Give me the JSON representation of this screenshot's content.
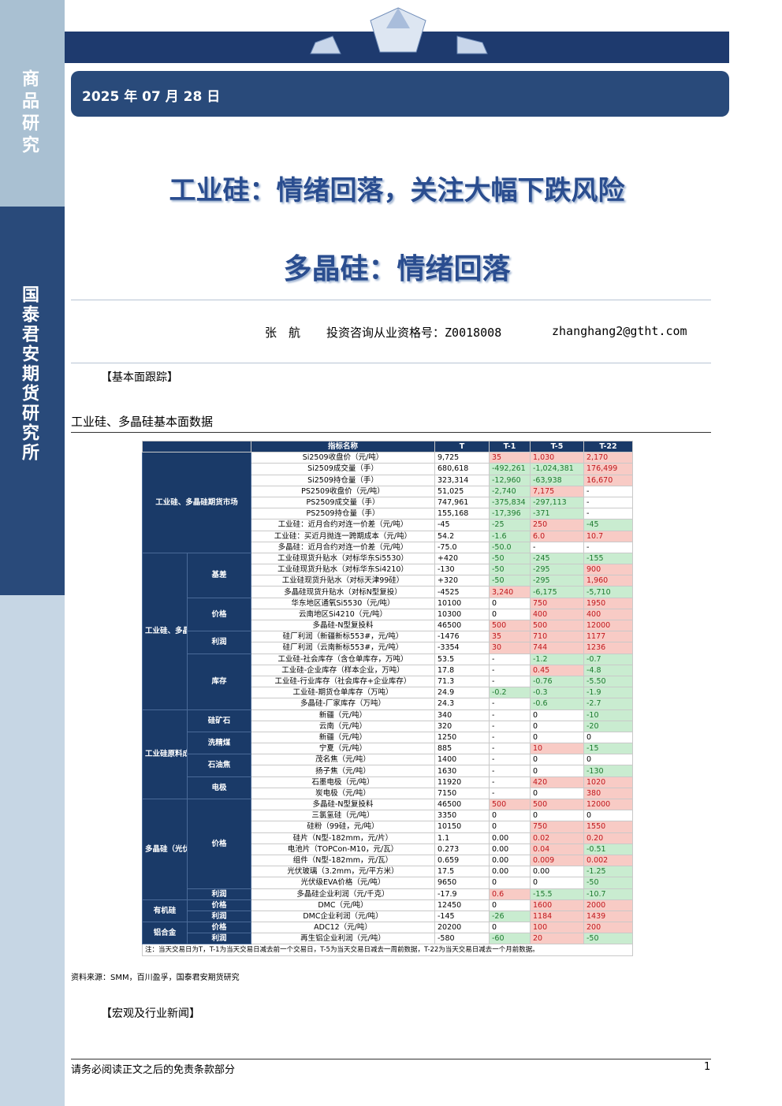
{
  "sidebar": {
    "section": "商品研究",
    "institute": "国泰君安期货研究所"
  },
  "header": {
    "date": "2025 年 07 月 28 日",
    "title": "工业硅：情绪回落，关注大幅下跌风险",
    "subtitle": "多晶硅：情绪回落"
  },
  "author": {
    "name": "张　航",
    "license": "投资咨询从业资格号：Z0018008",
    "email": "zhanghang2@gtht.com"
  },
  "fundamentals_heading": "【基本面跟踪】",
  "table_caption": "工业硅、多晶硅基本面数据",
  "table": {
    "header": [
      "指标名称",
      "T",
      "T-1",
      "T-5",
      "T-22"
    ],
    "groups": [
      {
        "label": "工业硅、多晶硅期货市场",
        "rows": [
          [
            "Si2509收盘价（元/吨）",
            "9,725",
            "35",
            "1,030",
            "2,170"
          ],
          [
            "Si2509成交量（手）",
            "680,618",
            "-492,261",
            "-1,024,381",
            "176,499"
          ],
          [
            "Si2509持仓量（手）",
            "323,314",
            "-12,960",
            "-63,938",
            "16,670"
          ],
          [
            "PS2509收盘价（元/吨）",
            "51,025",
            "-2,740",
            "7,175",
            "-"
          ],
          [
            "PS2509成交量（手）",
            "747,961",
            "-375,834",
            "-297,113",
            "-"
          ],
          [
            "PS2509持仓量（手）",
            "155,168",
            "-17,396",
            "-371",
            "-"
          ],
          [
            "工业硅：近月合约对连一价差（元/吨）",
            "-45",
            "-25",
            "250",
            "-45"
          ],
          [
            "工业硅：买近月抛连一跨期成本（元/吨）",
            "54.2",
            "-1.6",
            "6.0",
            "10.7"
          ],
          [
            "多晶硅：近月合约对连一价差（元/吨）",
            "-75.0",
            "-50.0",
            "-",
            "-"
          ]
        ]
      },
      {
        "label": "工业硅、多晶硅",
        "subgroups": [
          {
            "label": "基差",
            "rows": [
              [
                "工业硅现货升贴水（对标华东Si5530）",
                "+420",
                "-50",
                "-245",
                "-155"
              ],
              [
                "工业硅现货升贴水（对标华东Si4210）",
                "-130",
                "-50",
                "-295",
                "900"
              ],
              [
                "工业硅现货升贴水（对标天津99硅）",
                "+320",
                "-50",
                "-295",
                "1,960"
              ],
              [
                "多晶硅现货升贴水（对标N型复投）",
                "-4525",
                "3,240",
                "-6,175",
                "-5,710"
              ]
            ]
          },
          {
            "label": "价格",
            "rows": [
              [
                "华东地区通氧Si5530（元/吨）",
                "10100",
                "0",
                "750",
                "1950"
              ],
              [
                "云南地区Si4210（元/吨）",
                "10300",
                "0",
                "400",
                "400"
              ],
              [
                "多晶硅-N型复投料",
                "46500",
                "500",
                "500",
                "12000"
              ]
            ]
          },
          {
            "label": "利润",
            "rows": [
              [
                "硅厂利润（新疆新标553#，元/吨）",
                "-1476",
                "35",
                "710",
                "1177"
              ],
              [
                "硅厂利润（云南新标553#，元/吨）",
                "-3354",
                "30",
                "744",
                "1236"
              ]
            ]
          },
          {
            "label": "库存",
            "rows": [
              [
                "工业硅-社会库存（含仓单库存，万吨）",
                "53.5",
                "-",
                "-1.2",
                "-0.7"
              ],
              [
                "工业硅-企业库存（样本企业，万吨）",
                "17.8",
                "-",
                "0.45",
                "-4.8"
              ],
              [
                "工业硅-行业库存（社会库存+企业库存）",
                "71.3",
                "-",
                "-0.76",
                "-5.50"
              ],
              [
                "工业硅-期货仓单库存（万吨）",
                "24.9",
                "-0.2",
                "-0.3",
                "-1.9"
              ],
              [
                "多晶硅-厂家库存（万吨）",
                "24.3",
                "-",
                "-0.6",
                "-2.7"
              ]
            ]
          }
        ]
      },
      {
        "label": "工业硅原料成本",
        "subgroups": [
          {
            "label": "硅矿石",
            "rows": [
              [
                "新疆（元/吨）",
                "340",
                "-",
                "0",
                "-10"
              ],
              [
                "云南（元/吨）",
                "320",
                "-",
                "0",
                "-20"
              ]
            ]
          },
          {
            "label": "洗精煤",
            "rows": [
              [
                "新疆（元/吨）",
                "1250",
                "-",
                "0",
                "0"
              ],
              [
                "宁夏（元/吨）",
                "885",
                "-",
                "10",
                "-15"
              ]
            ]
          },
          {
            "label": "石油焦",
            "rows": [
              [
                "茂名焦（元/吨）",
                "1400",
                "-",
                "0",
                "0"
              ],
              [
                "扬子焦（元/吨）",
                "1630",
                "-",
                "0",
                "-130"
              ]
            ]
          },
          {
            "label": "电极",
            "rows": [
              [
                "石墨电极（元/吨）",
                "11920",
                "-",
                "420",
                "1020"
              ],
              [
                "炭电极（元/吨）",
                "7150",
                "-",
                "0",
                "380"
              ]
            ]
          }
        ]
      },
      {
        "label": "多晶硅（光伏）",
        "subgroups": [
          {
            "label": "价格",
            "rows": [
              [
                "多晶硅-N型复投料",
                "46500",
                "500",
                "500",
                "12000"
              ],
              [
                "三氯氢硅（元/吨）",
                "3350",
                "0",
                "0",
                "0"
              ],
              [
                "硅粉（99硅，元/吨）",
                "10150",
                "0",
                "750",
                "1550"
              ],
              [
                "硅片（N型-182mm，元/片）",
                "1.1",
                "0.00",
                "0.02",
                "0.20"
              ],
              [
                "电池片（TOPCon-M10，元/瓦）",
                "0.273",
                "0.00",
                "0.04",
                "-0.51"
              ],
              [
                "组件（N型-182mm，元/瓦）",
                "0.659",
                "0.00",
                "0.009",
                "0.002"
              ],
              [
                "光伏玻璃（3.2mm，元/平方米）",
                "17.5",
                "0.00",
                "0.00",
                "-1.25"
              ],
              [
                "光伏级EVA价格（元/吨）",
                "9650",
                "0",
                "0",
                "-50"
              ]
            ]
          },
          {
            "label": "利润",
            "rows": [
              [
                "多晶硅企业利润（元/千克）",
                "-17.9",
                "0.6",
                "-15.5",
                "-10.7"
              ]
            ]
          }
        ]
      },
      {
        "label": "有机硅",
        "subgroups": [
          {
            "label": "价格",
            "rows": [
              [
                "DMC（元/吨）",
                "12450",
                "0",
                "1600",
                "2000"
              ]
            ]
          },
          {
            "label": "利润",
            "rows": [
              [
                "DMC企业利润（元/吨）",
                "-145",
                "-26",
                "1184",
                "1439"
              ]
            ]
          }
        ]
      },
      {
        "label": "铝合金",
        "subgroups": [
          {
            "label": "价格",
            "rows": [
              [
                "ADC12（元/吨）",
                "20200",
                "0",
                "100",
                "200"
              ]
            ]
          },
          {
            "label": "利润",
            "rows": [
              [
                "再生铝企业利润（元/吨）",
                "-580",
                "-60",
                "20",
                "-50"
              ]
            ]
          }
        ]
      }
    ],
    "note": "注：当天交易日为T，T-1为当天交易日减去前一个交易日，T-5为当天交易日减去一周前数据，T-22为当天交易日减去一个月前数据。"
  },
  "source": "资料来源：SMM，百川盈孚，国泰君安期货研究",
  "news_heading": "【宏观及行业新闻】",
  "footer": {
    "disclaimer": "请务必阅读正文之后的免责条款部分",
    "page": "1"
  }
}
